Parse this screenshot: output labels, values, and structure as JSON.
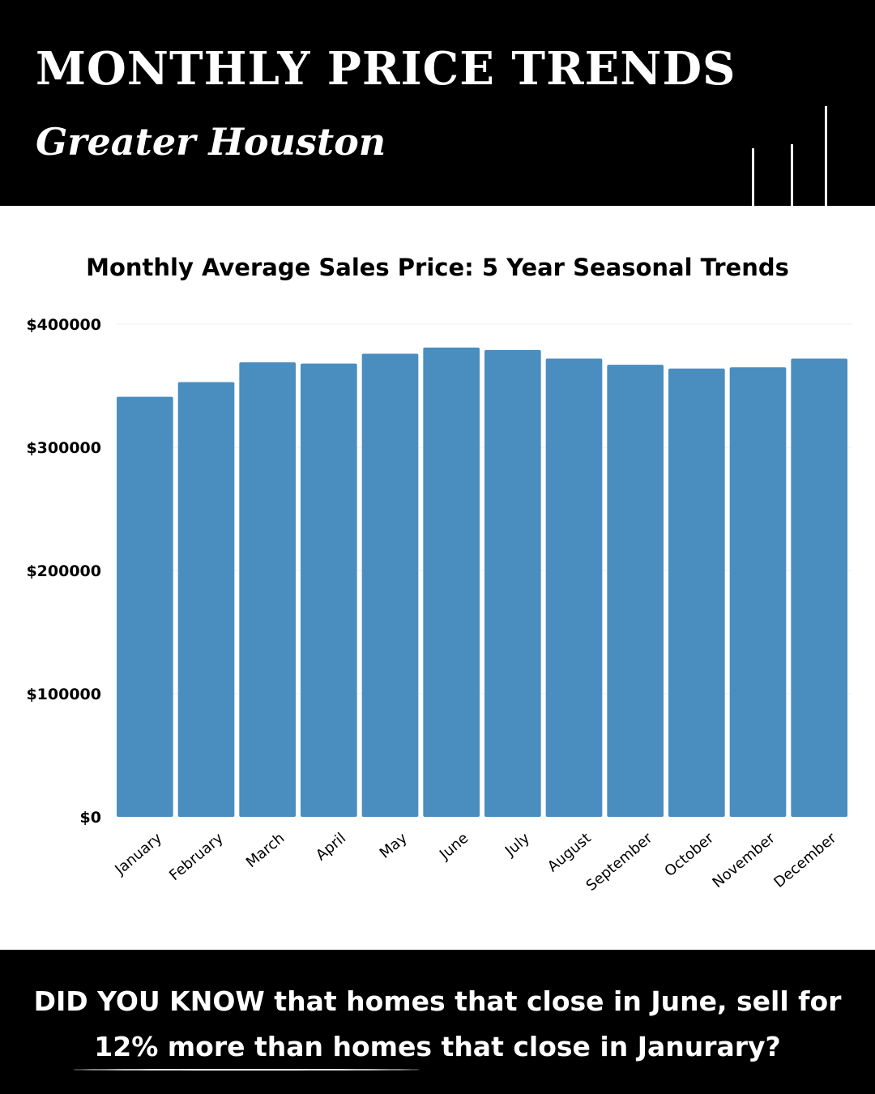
{
  "header": {
    "title": "MONTHLY PRICE TRENDS",
    "subtitle": "Greater Houston"
  },
  "colors": {
    "background": "#ffffff",
    "header_bg": "#000000",
    "bar": "#4a8ec0",
    "text": "#000000",
    "grid": "#eeeeee"
  },
  "chart_data": {
    "type": "bar",
    "title": "Monthly Average Sales Price: 5 Year Seasonal Trends",
    "xlabel": "",
    "ylabel": "",
    "ylim": [
      0,
      400000
    ],
    "yticks": [
      0,
      100000,
      200000,
      300000,
      400000
    ],
    "ytick_labels": [
      "$0",
      "$100000",
      "$200000",
      "$300000",
      "$400000"
    ],
    "categories": [
      "January",
      "February",
      "March",
      "April",
      "May",
      "June",
      "July",
      "August",
      "September",
      "October",
      "November",
      "December"
    ],
    "values": [
      341000,
      353000,
      369000,
      368000,
      376000,
      381000,
      379000,
      372000,
      367000,
      364000,
      365000,
      372000
    ],
    "grid": true,
    "legend": "none"
  },
  "footer": {
    "line1": "DID YOU KNOW that homes that close in June, sell for",
    "line2": "12% more than homes that close in Janurary?"
  }
}
